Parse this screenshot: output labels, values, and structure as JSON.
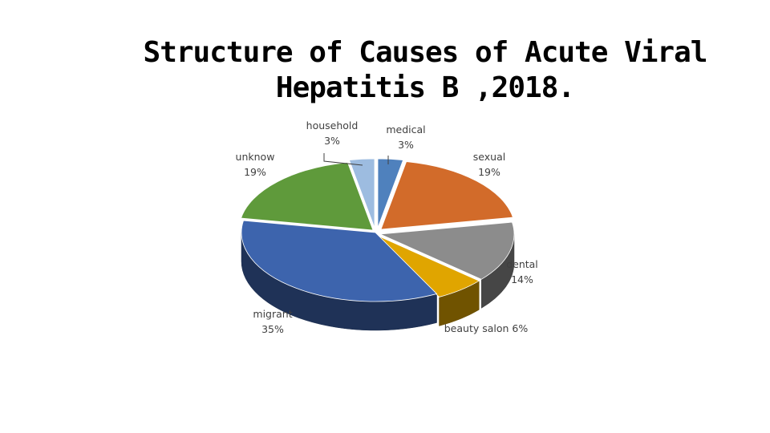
{
  "slide": {
    "title_line1": "Structure of Causes of Acute Viral",
    "title_line2": "Hepatitis B ,2018."
  },
  "chart_data": {
    "type": "pie",
    "title": "Structure of Causes of Acute Viral Hepatitis B ,2018.",
    "style": "3d-exploded",
    "slices": [
      {
        "name": "medical",
        "value": 3,
        "label": "3%",
        "color": "#4f81bd"
      },
      {
        "name": "sexual",
        "value": 19,
        "label": "19%",
        "color": "#d26b2a"
      },
      {
        "name": "dental",
        "value": 14,
        "label": "14%",
        "color": "#8c8c8c"
      },
      {
        "name": "beauty salon",
        "value": 6,
        "label": "6%",
        "color": "#e0a500"
      },
      {
        "name": "migrant",
        "value": 35,
        "label": "35%",
        "color": "#3d64ad"
      },
      {
        "name": "unknow",
        "value": 19,
        "label": "19%",
        "color": "#5f9a3b"
      },
      {
        "name": "household",
        "value": 3,
        "label": "3%",
        "color": "#9dbce0"
      }
    ]
  }
}
